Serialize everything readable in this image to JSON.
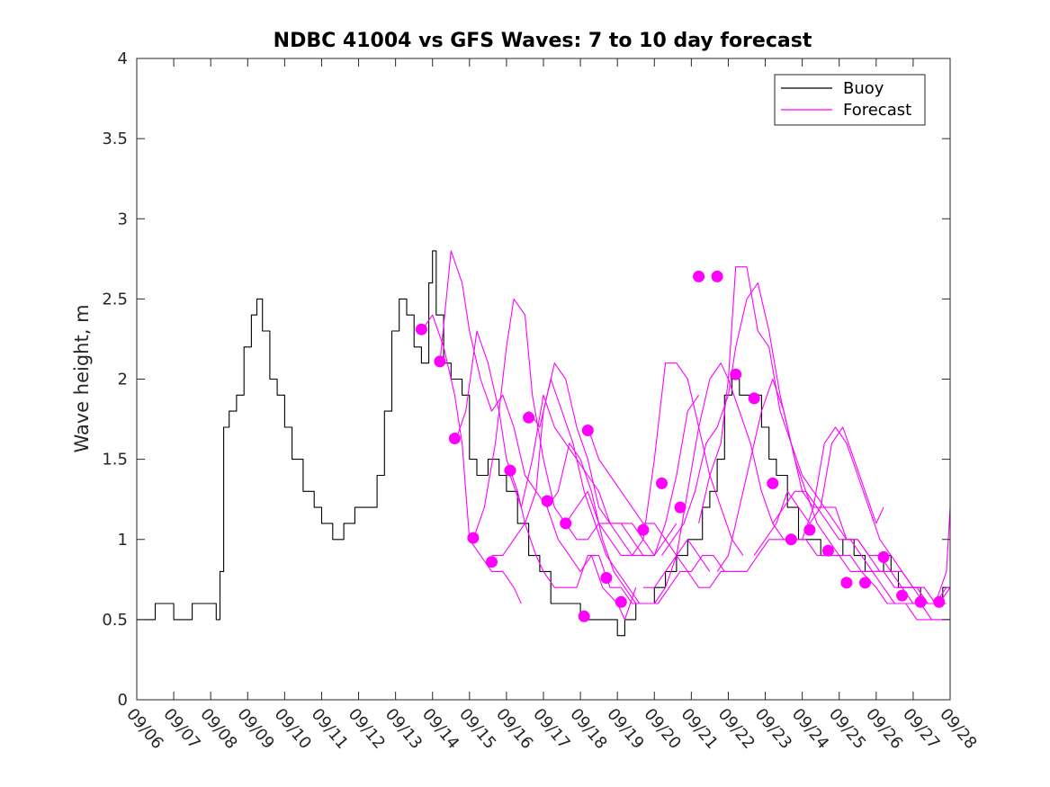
{
  "chart_data": {
    "type": "line",
    "title": "NDBC 41004 vs GFS Waves: 7 to 10 day forecast",
    "xlabel": "",
    "ylabel": "Wave height, m",
    "xlim": [
      0,
      22
    ],
    "ylim": [
      0,
      4
    ],
    "x_ticks": [
      0,
      1,
      2,
      3,
      4,
      5,
      6,
      7,
      8,
      9,
      10,
      11,
      12,
      13,
      14,
      15,
      16,
      17,
      18,
      19,
      20,
      21,
      22
    ],
    "x_tick_labels": [
      "09/06",
      "09/07",
      "09/08",
      "09/09",
      "09/10",
      "09/11",
      "09/12",
      "09/13",
      "09/14",
      "09/15",
      "09/16",
      "09/17",
      "09/18",
      "09/19",
      "09/20",
      "09/21",
      "09/22",
      "09/23",
      "09/24",
      "09/25",
      "09/26",
      "09/27",
      "09/28"
    ],
    "y_ticks": [
      0,
      0.5,
      1,
      1.5,
      2,
      2.5,
      3,
      3.5,
      4
    ],
    "y_tick_labels": [
      "0",
      "0.5",
      "1",
      "1.5",
      "2",
      "2.5",
      "3",
      "3.5",
      "4"
    ],
    "grid": false,
    "legend": {
      "position": "top-right",
      "entries": [
        {
          "name": "Buoy",
          "color": "#000000"
        },
        {
          "name": "Forecast",
          "color": "#FF00FF"
        }
      ]
    },
    "colors": {
      "buoy": "#000000",
      "forecast": "#FF00FF"
    },
    "series": [
      {
        "name": "Buoy",
        "x": [
          0,
          0.5,
          1.0,
          1.5,
          2.0,
          2.15,
          2.25,
          2.35,
          2.5,
          2.7,
          2.9,
          3.1,
          3.25,
          3.4,
          3.6,
          3.8,
          4.0,
          4.2,
          4.5,
          4.8,
          5.0,
          5.3,
          5.6,
          5.9,
          6.2,
          6.5,
          6.7,
          6.9,
          7.1,
          7.3,
          7.5,
          7.7,
          7.9,
          8.0,
          8.1,
          8.3,
          8.5,
          8.8,
          9.0,
          9.2,
          9.5,
          9.8,
          10.0,
          10.3,
          10.6,
          10.9,
          11.2,
          11.5,
          11.8,
          12.0,
          12.3,
          12.6,
          12.8,
          13.0,
          13.2,
          13.5,
          13.8,
          14.0,
          14.3,
          14.6,
          14.9,
          15.1,
          15.3,
          15.5,
          15.7,
          15.9,
          16.1,
          16.3,
          16.6,
          16.9,
          17.1,
          17.3,
          17.6,
          17.9,
          18.2,
          18.5,
          18.8,
          19.1,
          19.4,
          19.7,
          20.0,
          20.2,
          20.4,
          20.6,
          20.9,
          21.2,
          21.5,
          21.8,
          22.0
        ],
        "y": [
          0.5,
          0.6,
          0.5,
          0.6,
          0.6,
          0.5,
          0.8,
          1.7,
          1.8,
          1.9,
          2.2,
          2.4,
          2.5,
          2.3,
          2.0,
          1.9,
          1.7,
          1.5,
          1.3,
          1.2,
          1.1,
          1.0,
          1.1,
          1.2,
          1.2,
          1.4,
          1.8,
          2.3,
          2.5,
          2.4,
          2.2,
          2.1,
          2.6,
          2.8,
          2.4,
          2.1,
          2.0,
          1.9,
          1.5,
          1.4,
          1.5,
          1.4,
          1.3,
          1.1,
          0.9,
          0.8,
          0.6,
          0.6,
          0.6,
          0.5,
          0.5,
          0.5,
          0.5,
          0.4,
          0.5,
          0.6,
          0.6,
          0.7,
          0.8,
          0.9,
          1.0,
          1.0,
          1.2,
          1.3,
          1.5,
          1.9,
          2.0,
          1.9,
          1.9,
          1.7,
          1.5,
          1.4,
          1.2,
          1.0,
          1.0,
          0.9,
          0.9,
          1.0,
          0.9,
          0.8,
          0.8,
          0.9,
          0.8,
          0.7,
          0.7,
          0.6,
          0.6,
          0.7,
          0.7
        ]
      },
      {
        "name": "Forecast 1",
        "x": [
          7.7,
          8.0,
          8.3,
          8.6,
          8.8,
          9.0,
          9.3,
          9.6,
          9.9,
          10.2,
          10.4
        ],
        "y": [
          2.3,
          2.4,
          2.2,
          1.9,
          1.6,
          1.0,
          0.9,
          0.8,
          0.8,
          0.7,
          0.6
        ]
      },
      {
        "name": "Forecast 2",
        "x": [
          8.2,
          8.5,
          8.8,
          9.0,
          9.3,
          9.6,
          9.9,
          10.2,
          10.5,
          10.8,
          11.1,
          11.4,
          11.7,
          12.0,
          12.3,
          12.6,
          13.0,
          13.2,
          13.5
        ],
        "y": [
          2.1,
          2.8,
          2.6,
          2.3,
          2.0,
          1.8,
          1.9,
          1.7,
          1.4,
          1.3,
          1.2,
          1.0,
          0.9,
          0.8,
          0.9,
          0.7,
          0.6,
          0.5,
          0.7
        ]
      },
      {
        "name": "Forecast 3",
        "x": [
          8.6,
          8.9,
          9.2,
          9.5,
          9.8,
          10.0,
          10.3,
          10.5,
          10.8,
          11.0,
          11.3,
          11.6,
          11.9,
          12.2,
          12.5,
          12.8,
          13.1,
          13.4,
          13.7
        ],
        "y": [
          1.6,
          1.8,
          2.3,
          2.1,
          1.8,
          1.5,
          1.3,
          1.1,
          0.9,
          0.8,
          0.7,
          0.7,
          0.7,
          0.9,
          0.9,
          0.7,
          0.7,
          0.6,
          0.6
        ]
      },
      {
        "name": "Forecast 4",
        "x": [
          9.1,
          9.4,
          9.7,
          10.0,
          10.2,
          10.5,
          10.7,
          11.0,
          11.3,
          11.6,
          11.9,
          12.2,
          12.5,
          12.8,
          13.1,
          13.4,
          13.7,
          14.0
        ],
        "y": [
          1.0,
          1.2,
          1.6,
          2.2,
          2.5,
          2.4,
          1.9,
          1.5,
          1.2,
          1.1,
          1.0,
          1.0,
          1.1,
          1.1,
          1.1,
          1.0,
          0.9,
          0.9
        ]
      },
      {
        "name": "Forecast 5",
        "x": [
          9.6,
          9.9,
          10.2,
          10.5,
          10.8,
          11.0,
          11.3,
          11.6,
          11.9,
          12.2,
          12.5,
          12.8,
          13.1,
          13.4,
          13.7,
          14.0,
          14.3,
          14.6
        ],
        "y": [
          0.9,
          0.9,
          1.0,
          1.1,
          1.3,
          1.8,
          2.1,
          2.0,
          1.7,
          1.5,
          1.2,
          1.1,
          1.1,
          1.1,
          1.0,
          0.9,
          1.0,
          1.1
        ]
      },
      {
        "name": "Forecast 6",
        "x": [
          10.1,
          10.4,
          10.7,
          11.0,
          11.3,
          11.6,
          11.9,
          12.2,
          12.5,
          12.8,
          13.1,
          13.4,
          13.7,
          14.0,
          14.3,
          14.6,
          14.9,
          15.2
        ],
        "y": [
          1.4,
          1.2,
          1.5,
          1.9,
          1.7,
          1.6,
          1.5,
          1.4,
          1.3,
          1.1,
          1.0,
          0.9,
          0.9,
          0.9,
          1.1,
          1.4,
          1.8,
          1.9
        ]
      },
      {
        "name": "Forecast 7",
        "x": [
          10.6,
          10.9,
          11.2,
          11.5,
          11.8,
          12.1,
          12.4,
          12.7,
          13.0,
          13.3,
          13.6,
          14.0,
          14.3,
          14.6,
          14.9,
          15.2,
          15.5
        ],
        "y": [
          1.8,
          1.7,
          2.0,
          1.8,
          1.6,
          1.3,
          1.1,
          0.9,
          0.8,
          0.7,
          0.6,
          0.6,
          0.7,
          0.9,
          1.0,
          0.9,
          0.8
        ]
      },
      {
        "name": "Forecast 8",
        "x": [
          11.1,
          11.4,
          11.7,
          12.0,
          12.3,
          12.6,
          12.9,
          13.2,
          13.5,
          13.8,
          14.1,
          14.4,
          14.7,
          15.0,
          15.3,
          15.6,
          15.9
        ],
        "y": [
          1.2,
          1.3,
          1.6,
          1.5,
          1.3,
          1.0,
          0.8,
          0.7,
          0.6,
          0.6,
          0.6,
          0.7,
          0.8,
          0.8,
          0.9,
          0.9,
          0.8
        ]
      },
      {
        "name": "Forecast 9",
        "x": [
          11.6,
          11.9,
          12.2,
          12.5,
          12.8,
          13.1,
          13.4,
          13.7,
          14.0,
          14.3,
          14.6,
          14.9,
          15.2,
          15.5,
          15.8,
          16.1,
          16.4
        ],
        "y": [
          1.1,
          1.2,
          1.3,
          1.1,
          1.0,
          0.9,
          0.9,
          1.0,
          1.5,
          2.1,
          2.1,
          2.0,
          1.7,
          1.4,
          1.2,
          1.0,
          0.9
        ]
      },
      {
        "name": "Forecast 10",
        "x": [
          12.2,
          12.5,
          12.8,
          13.1,
          13.4,
          13.7,
          14.0,
          14.3,
          14.6,
          14.9,
          15.2,
          15.5,
          15.8,
          16.1,
          16.4
        ],
        "y": [
          1.7,
          1.5,
          1.4,
          1.3,
          1.2,
          1.1,
          1.1,
          1.0,
          0.9,
          0.8,
          0.7,
          0.7,
          0.8,
          0.8,
          0.8
        ]
      },
      {
        "name": "Forecast 11",
        "x": [
          13.7,
          14.0,
          14.3,
          14.6,
          14.9,
          15.2,
          15.5,
          15.8,
          16.0,
          16.3,
          16.6,
          16.9,
          17.2,
          17.5,
          17.8,
          18.1,
          18.4,
          18.7,
          19.0,
          19.3,
          19.6,
          20.0,
          20.3,
          20.6,
          20.9,
          21.2,
          21.5,
          21.8,
          22.0
        ],
        "y": [
          0.7,
          0.7,
          0.8,
          0.9,
          1.3,
          1.7,
          2.0,
          2.1,
          2.0,
          1.8,
          1.6,
          1.3,
          1.1,
          1.0,
          1.0,
          1.0,
          0.9,
          0.9,
          0.9,
          0.8,
          0.8,
          0.7,
          0.6,
          0.6,
          0.6,
          0.6,
          0.5,
          0.5,
          0.5
        ]
      },
      {
        "name": "Forecast 12",
        "x": [
          14.2,
          14.5,
          14.8,
          15.1,
          15.4,
          15.7,
          16.0,
          16.2,
          16.5,
          16.8,
          17.1,
          17.4,
          17.7,
          18.0,
          18.3,
          18.6,
          18.9,
          19.2,
          19.5,
          19.8,
          20.1,
          20.4,
          20.7,
          21.0,
          21.3,
          21.6,
          21.9
        ],
        "y": [
          0.9,
          1.0,
          1.1,
          1.3,
          1.6,
          1.7,
          1.9,
          2.2,
          2.5,
          2.6,
          2.3,
          1.9,
          1.6,
          1.4,
          1.3,
          1.2,
          1.2,
          1.0,
          1.0,
          0.9,
          0.9,
          0.8,
          0.8,
          0.7,
          0.6,
          0.6,
          0.6
        ]
      },
      {
        "name": "Forecast 13",
        "x": [
          15.2,
          15.5,
          15.8,
          16.0,
          16.2,
          16.5,
          16.8,
          17.1,
          17.4,
          17.7,
          18.0,
          18.3,
          18.6,
          18.9,
          19.2,
          19.5,
          19.8,
          20.1,
          20.4,
          20.7,
          21.0,
          21.3,
          21.6,
          21.9,
          22.0
        ],
        "y": [
          1.1,
          1.4,
          1.6,
          2.0,
          2.7,
          2.7,
          2.3,
          2.2,
          1.8,
          1.6,
          1.3,
          1.2,
          1.2,
          1.1,
          1.0,
          1.0,
          0.9,
          0.8,
          0.8,
          0.7,
          0.6,
          0.6,
          0.6,
          0.7,
          0.7
        ]
      },
      {
        "name": "Forecast 14",
        "x": [
          15.7,
          16.0,
          16.3,
          16.6,
          16.9,
          17.2,
          17.5,
          17.8,
          18.1,
          18.4,
          18.7,
          19.0,
          19.3,
          19.6,
          19.9,
          20.2,
          20.5,
          20.8,
          21.1,
          21.4,
          21.7,
          22.0
        ],
        "y": [
          0.8,
          0.9,
          1.2,
          1.5,
          1.8,
          2.0,
          1.8,
          1.5,
          1.3,
          1.1,
          1.0,
          0.9,
          0.9,
          0.8,
          0.8,
          0.8,
          0.7,
          0.7,
          0.7,
          0.6,
          0.6,
          0.7
        ]
      },
      {
        "name": "Forecast 15",
        "x": [
          16.2,
          16.5,
          16.8,
          17.1,
          17.4,
          17.7,
          18.0,
          18.3,
          18.6,
          18.9,
          19.2,
          19.5,
          19.8,
          20.1,
          20.4,
          20.7,
          21.0,
          21.3,
          21.6,
          21.9,
          22.0
        ],
        "y": [
          0.8,
          0.8,
          0.9,
          1.0,
          1.0,
          1.0,
          1.0,
          1.2,
          1.6,
          1.7,
          1.6,
          1.4,
          1.2,
          1.0,
          0.9,
          0.8,
          0.7,
          0.7,
          0.6,
          0.8,
          1.2
        ]
      },
      {
        "name": "Forecast 16",
        "x": [
          16.7,
          17.0,
          17.3,
          17.6,
          17.9,
          18.2,
          18.5,
          18.8,
          19.1,
          19.4,
          19.7,
          20.0,
          20.2
        ],
        "y": [
          0.9,
          1.0,
          1.1,
          1.3,
          1.2,
          1.1,
          1.2,
          1.6,
          1.7,
          1.5,
          1.3,
          1.1,
          1.2
        ]
      },
      {
        "name": "Forecast 17",
        "x": [
          17.2,
          17.5,
          17.8,
          18.1,
          18.4,
          18.7,
          19.0,
          19.3,
          19.6,
          19.9,
          20.2,
          20.5,
          20.8,
          21.1,
          21.4,
          21.7,
          22.0
        ],
        "y": [
          1.1,
          1.2,
          1.3,
          1.3,
          1.2,
          1.1,
          1.0,
          1.0,
          0.9,
          0.8,
          0.7,
          0.6,
          0.6,
          0.5,
          0.5,
          0.5,
          0.5
        ]
      }
    ],
    "forecast_markers": {
      "name": "Forecast initial points",
      "x": [
        7.7,
        8.2,
        8.6,
        9.1,
        9.6,
        10.1,
        10.6,
        11.1,
        11.6,
        12.1,
        12.2,
        12.7,
        13.1,
        13.7,
        14.2,
        14.7,
        15.2,
        15.7,
        16.2,
        16.7,
        17.2,
        17.7,
        18.2,
        18.7,
        19.2,
        19.7,
        20.2,
        20.7,
        21.2,
        21.7
      ],
      "y": [
        2.31,
        2.11,
        1.63,
        1.01,
        0.86,
        1.43,
        1.76,
        1.24,
        1.1,
        0.52,
        1.68,
        0.76,
        0.61,
        1.06,
        1.35,
        1.2,
        2.64,
        2.64,
        2.03,
        1.88,
        1.35,
        1.0,
        1.06,
        0.93,
        0.73,
        0.73,
        0.89,
        0.65,
        0.61,
        0.61
      ]
    }
  }
}
